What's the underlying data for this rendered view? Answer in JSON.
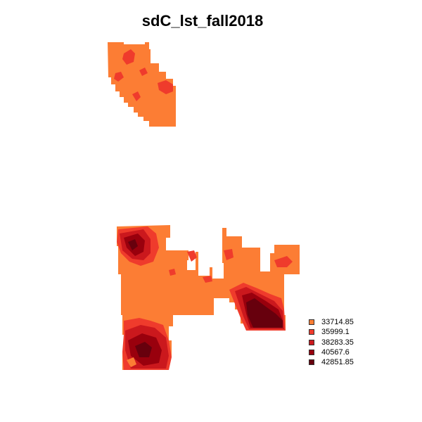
{
  "title": "sdC_lst_fall2018",
  "palette": {
    "class_1": "#fc7d34",
    "class_2": "#ef3b2c",
    "class_3": "#cb181d",
    "class_4": "#99000d",
    "class_5": "#67000d"
  },
  "legend": {
    "items": [
      {
        "label": "33714.85",
        "color": "#fc7d34"
      },
      {
        "label": "35999.1",
        "color": "#ef3b2c"
      },
      {
        "label": "38283.35",
        "color": "#cb181d"
      },
      {
        "label": "40567.6",
        "color": "#99000d"
      },
      {
        "label": "42851.85",
        "color": "#67000d"
      }
    ]
  }
}
